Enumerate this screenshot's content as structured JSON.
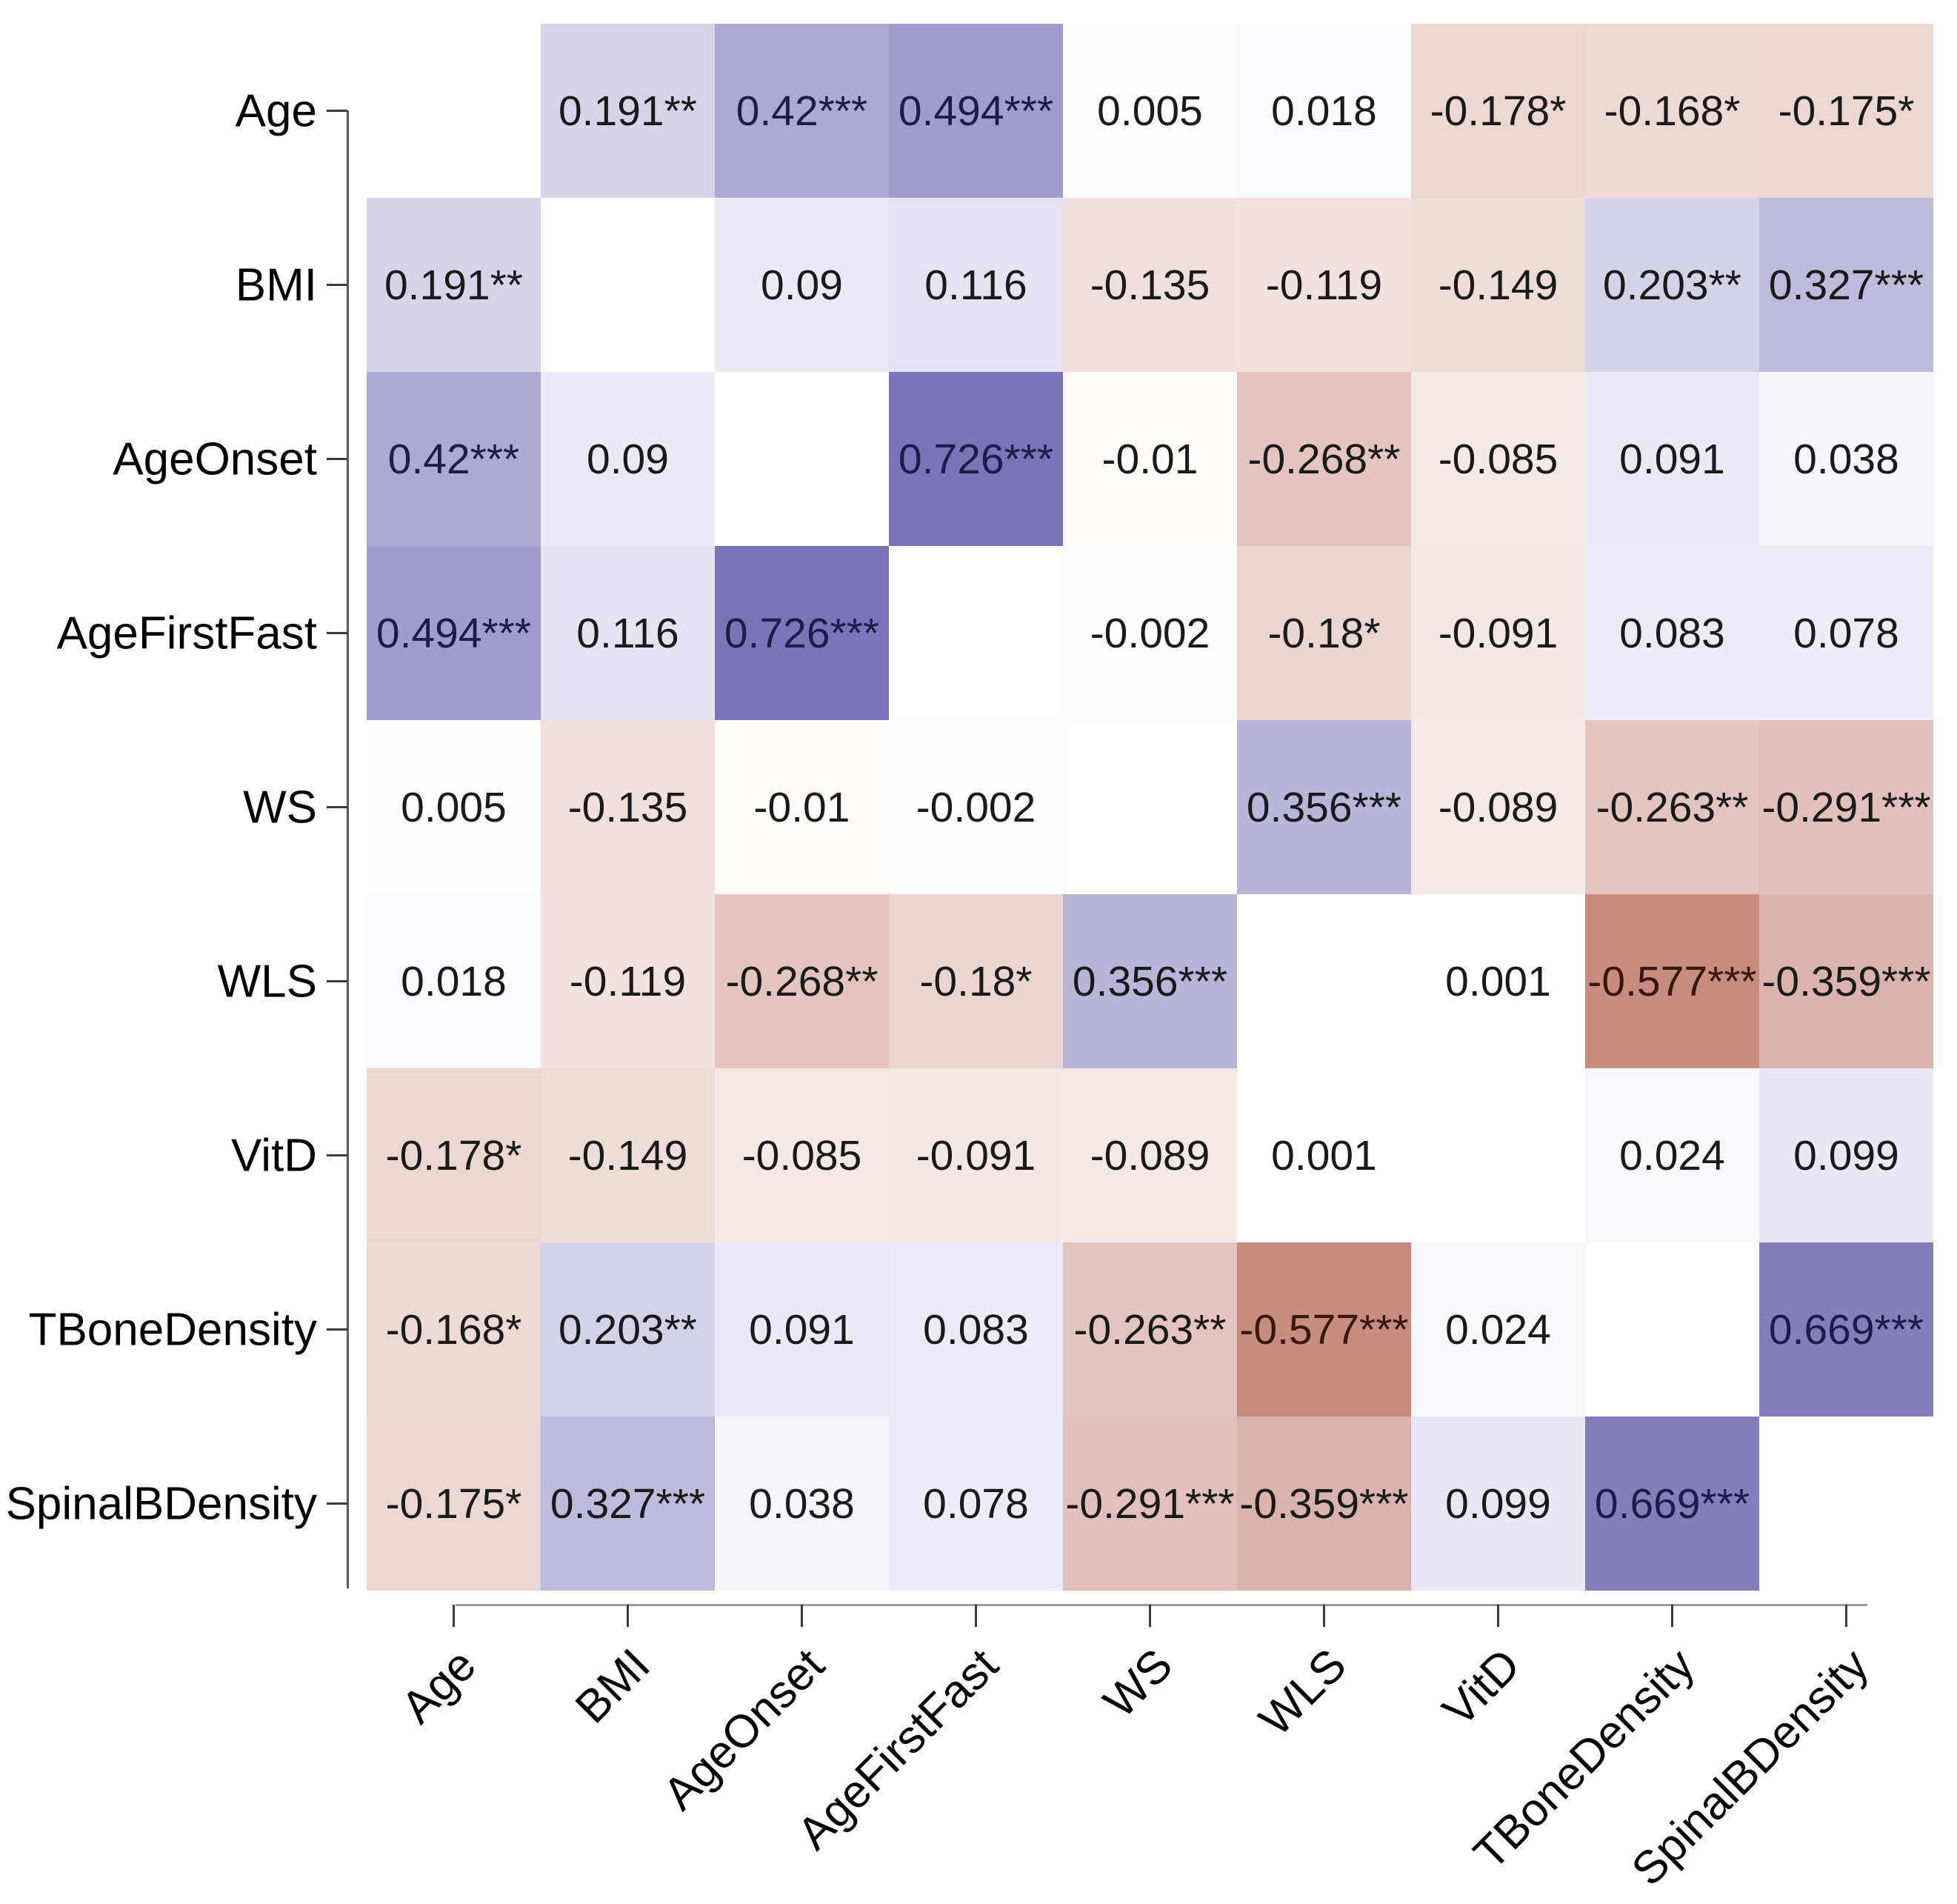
{
  "chart_data": {
    "type": "heatmap",
    "title": "",
    "variables": [
      "Age",
      "BMI",
      "AgeOnset",
      "AgeFirstFast",
      "WS",
      "WLS",
      "VitD",
      "TBoneDensity",
      "SpinalBDensity"
    ],
    "cells": [
      [
        null,
        "0.191**",
        "0.42***",
        "0.494***",
        "0.005",
        "0.018",
        "-0.178*",
        "-0.168*",
        "-0.175*"
      ],
      [
        "0.191**",
        null,
        "0.09",
        "0.116",
        "-0.135",
        "-0.119",
        "-0.149",
        "0.203**",
        "0.327***"
      ],
      [
        "0.42***",
        "0.09",
        null,
        "0.726***",
        "-0.01",
        "-0.268**",
        "-0.085",
        "0.091",
        "0.038"
      ],
      [
        "0.494***",
        "0.116",
        "0.726***",
        null,
        "-0.002",
        "-0.18*",
        "-0.091",
        "0.083",
        "0.078"
      ],
      [
        "0.005",
        "-0.135",
        "-0.01",
        "-0.002",
        null,
        "0.356***",
        "-0.089",
        "-0.263**",
        "-0.291***"
      ],
      [
        "0.018",
        "-0.119",
        "-0.268**",
        "-0.18*",
        "0.356***",
        null,
        "0.001",
        "-0.577***",
        "-0.359***"
      ],
      [
        "-0.178*",
        "-0.149",
        "-0.085",
        "-0.091",
        "-0.089",
        "0.001",
        null,
        "0.024",
        "0.099"
      ],
      [
        "-0.168*",
        "0.203**",
        "0.091",
        "0.083",
        "-0.263**",
        "-0.577***",
        "0.024",
        null,
        "0.669***"
      ],
      [
        "-0.175*",
        "0.327***",
        "0.038",
        "0.078",
        "-0.291***",
        "-0.359***",
        "0.099",
        "0.669***",
        null
      ]
    ],
    "colormap": {
      "positive_end": "#7c74b8",
      "negative_end": "#bb7164",
      "zero": "#ffffff",
      "scale_max_abs": 0.726
    },
    "layout": {
      "x_tick_angle": 45,
      "grid": "off",
      "legend": "none",
      "diagonal": "blank"
    }
  }
}
